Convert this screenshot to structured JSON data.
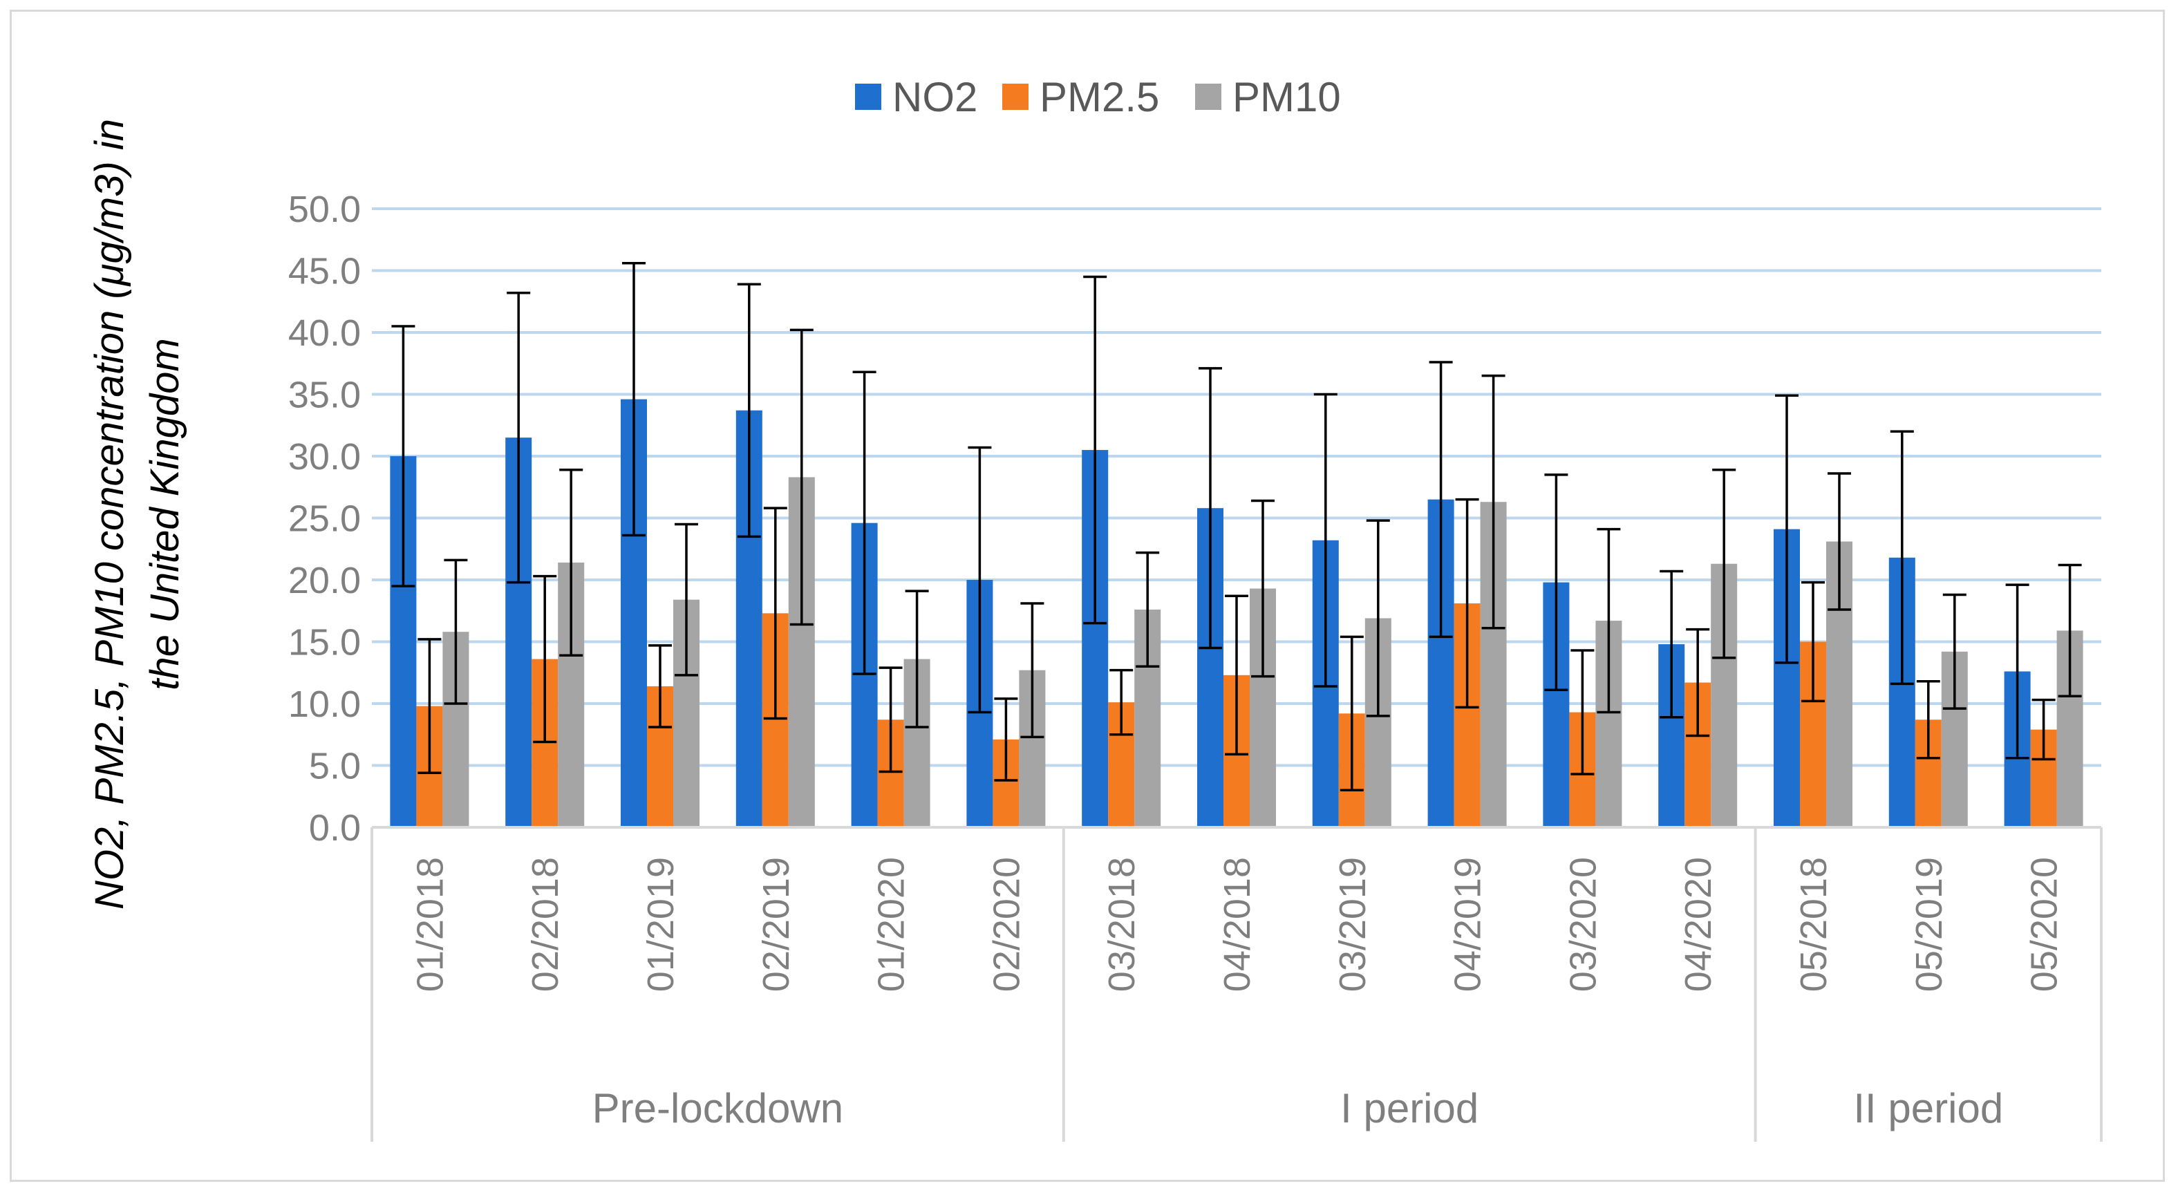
{
  "chart_data": {
    "type": "bar",
    "title": "",
    "ylabel": {
      "line1": "NO2, PM2.5, PM10 concentration (μg/m3) in",
      "line2": "the United Kingdom"
    },
    "ylim": [
      0,
      50
    ],
    "ytick_step": 5,
    "yticks": [
      "0.0",
      "5.0",
      "10.0",
      "15.0",
      "20.0",
      "25.0",
      "30.0",
      "35.0",
      "40.0",
      "45.0",
      "50.0"
    ],
    "grid": true,
    "legend_position": "top-center",
    "categories": [
      "01/2018",
      "02/2018",
      "01/2019",
      "02/2019",
      "01/2020",
      "02/2020",
      "03/2018",
      "04/2018",
      "03/2019",
      "04/2019",
      "03/2020",
      "04/2020",
      "05/2018",
      "05/2019",
      "05/2020"
    ],
    "groups": [
      {
        "label": "Pre-lockdown",
        "start": 0,
        "count": 6
      },
      {
        "label": "I period",
        "start": 6,
        "count": 6
      },
      {
        "label": "II period",
        "start": 12,
        "count": 3
      }
    ],
    "series": [
      {
        "name": "NO2",
        "color": "#1f6fcf",
        "values": [
          30.0,
          31.5,
          34.6,
          33.7,
          24.6,
          20.0,
          30.5,
          25.8,
          23.2,
          26.5,
          19.8,
          14.8,
          24.1,
          21.8,
          12.6
        ],
        "error": [
          10.5,
          11.7,
          11.0,
          10.2,
          12.2,
          10.7,
          14.0,
          11.3,
          11.8,
          11.1,
          8.7,
          5.9,
          10.8,
          10.2,
          7.0
        ]
      },
      {
        "name": "PM2.5",
        "color": "#f47b20",
        "values": [
          9.8,
          13.6,
          11.4,
          17.3,
          8.7,
          7.1,
          10.1,
          12.3,
          9.2,
          18.1,
          9.3,
          11.7,
          15.0,
          8.7,
          7.9
        ],
        "error": [
          5.4,
          6.7,
          3.3,
          8.5,
          4.2,
          3.3,
          2.6,
          6.4,
          6.2,
          8.4,
          5.0,
          4.3,
          4.8,
          3.1,
          2.4
        ]
      },
      {
        "name": "PM10",
        "color": "#a5a5a5",
        "values": [
          15.8,
          21.4,
          18.4,
          28.3,
          13.6,
          12.7,
          17.6,
          19.3,
          16.9,
          26.3,
          16.7,
          21.3,
          23.1,
          14.2,
          15.9
        ],
        "error": [
          5.8,
          7.5,
          6.1,
          11.9,
          5.5,
          5.4,
          4.6,
          7.1,
          7.9,
          10.2,
          7.4,
          7.6,
          5.5,
          4.6,
          5.3
        ]
      }
    ]
  }
}
